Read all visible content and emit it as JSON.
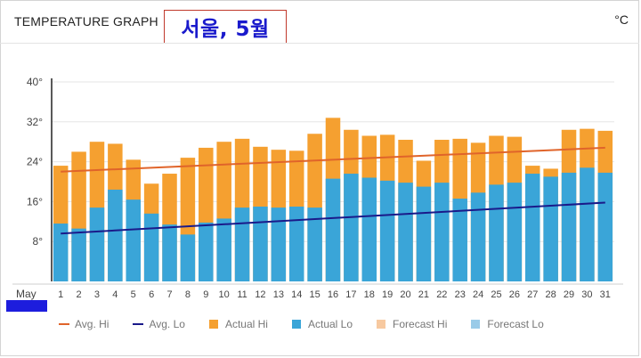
{
  "header": {
    "title": "TEMPERATURE GRAPH",
    "unit": "°C",
    "overlay_text": "서울, 5월"
  },
  "colors": {
    "actual_hi": "#f5a030",
    "actual_lo": "#3aa5d8",
    "avg_hi_line": "#e0642a",
    "avg_lo_line": "#1a1a8a",
    "forecast_hi": "#f7c9a0",
    "forecast_lo": "#9acbe8",
    "month_highlight": "#1d1ddd",
    "overlay_text": "#1a1acc",
    "overlay_border": "#c0392b"
  },
  "legend": [
    {
      "label": "Avg. Hi",
      "kind": "line",
      "color_key": "avg_hi_line"
    },
    {
      "label": "Avg. Lo",
      "kind": "line",
      "color_key": "avg_lo_line"
    },
    {
      "label": "Actual Hi",
      "kind": "box",
      "color_key": "actual_hi"
    },
    {
      "label": "Actual Lo",
      "kind": "box",
      "color_key": "actual_lo"
    },
    {
      "label": "Forecast Hi",
      "kind": "box",
      "color_key": "forecast_hi"
    },
    {
      "label": "Forecast Lo",
      "kind": "box",
      "color_key": "forecast_lo"
    }
  ],
  "chart_data": {
    "type": "bar",
    "title": "TEMPERATURE GRAPH",
    "month_label": "May",
    "categories": [
      "1",
      "2",
      "3",
      "4",
      "5",
      "6",
      "7",
      "8",
      "9",
      "10",
      "11",
      "12",
      "13",
      "14",
      "15",
      "16",
      "17",
      "18",
      "19",
      "20",
      "21",
      "22",
      "23",
      "24",
      "25",
      "26",
      "27",
      "28",
      "29",
      "30",
      "31"
    ],
    "ylim": [
      0,
      40
    ],
    "yticks": [
      8,
      16,
      24,
      32,
      40
    ],
    "ytick_labels": [
      "8°",
      "16°",
      "24°",
      "32°",
      "40°"
    ],
    "grid": true,
    "legend_position": "bottom",
    "series": [
      {
        "name": "Actual Hi",
        "type": "bar",
        "values": [
          23.2,
          26,
          28,
          27.6,
          24.4,
          19.6,
          21.6,
          24.8,
          26.8,
          28,
          28.6,
          27,
          26.4,
          26.2,
          29.6,
          32.8,
          30.4,
          29.2,
          29.4,
          28.4,
          24.2,
          28.4,
          28.6,
          27.8,
          29.2,
          29,
          23.2,
          22.6,
          30.4,
          30.6,
          30.2
        ]
      },
      {
        "name": "Actual Lo",
        "type": "bar",
        "values": [
          11.6,
          10.6,
          14.8,
          18.4,
          16.4,
          13.6,
          11.4,
          9.4,
          11.8,
          12.6,
          14.8,
          15,
          14.8,
          15,
          14.8,
          20.6,
          21.6,
          20.8,
          20.2,
          19.8,
          19,
          19.8,
          16.6,
          17.8,
          19.4,
          19.8,
          21.6,
          21,
          21.8,
          22.8,
          21.8
        ]
      },
      {
        "name": "Avg. Hi",
        "type": "line",
        "from": 22.0,
        "to": 26.8
      },
      {
        "name": "Avg. Lo",
        "type": "line",
        "from": 9.6,
        "to": 15.8
      }
    ]
  }
}
